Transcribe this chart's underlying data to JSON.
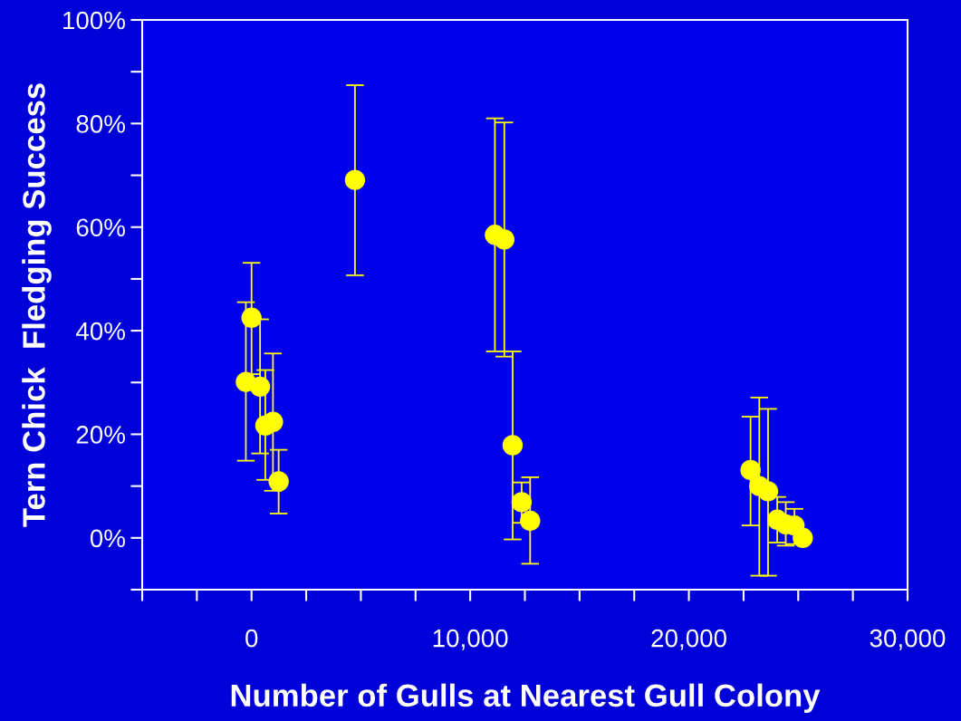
{
  "chart_data": {
    "type": "scatter",
    "xlabel": "Number of Gulls at Nearest Gull Colony",
    "ylabel": "Tern Chick  Fledging Success",
    "x": [
      -260,
      0,
      390,
      630,
      980,
      1240,
      4730,
      11130,
      11560,
      11940,
      12350,
      12740,
      22820,
      23220,
      23620,
      24040,
      24430,
      24830,
      25210
    ],
    "series": [
      {
        "color": "#ffff00",
        "values": [
          30.1,
          42.5,
          29.2,
          21.7,
          22.4,
          10.9,
          69.1,
          58.5,
          57.6,
          17.9,
          6.9,
          3.3,
          13.1,
          10.0,
          9.0,
          3.5,
          2.6,
          2.4,
          0
        ],
        "errors": [
          [
            14.9,
            45.5
          ],
          [
            31.6,
            53.1
          ],
          [
            16.3,
            42.2
          ],
          [
            11.2,
            32.4
          ],
          [
            9.1,
            35.6
          ],
          [
            4.7,
            17.0
          ],
          [
            50.7,
            87.4
          ],
          [
            36.0,
            81.0
          ],
          [
            35.0,
            80.2
          ],
          [
            -0.3,
            36.0
          ],
          [
            2.9,
            10.7
          ],
          [
            -5.0,
            11.7
          ],
          [
            2.4,
            23.4
          ],
          [
            -7.3,
            27.1
          ],
          [
            -7.3,
            24.9
          ],
          [
            -0.9,
            7.9
          ],
          [
            -1.5,
            6.9
          ],
          [
            -1.2,
            5.6
          ],
          null
        ]
      }
    ],
    "marker": "circle",
    "xlim": [
      -5000,
      30000
    ],
    "xticks": [
      {
        "value": -5000,
        "label": null
      },
      {
        "value": -2500,
        "label": null
      },
      {
        "value": 0,
        "label": "0"
      },
      {
        "value": 2500,
        "label": null
      },
      {
        "value": 5000,
        "label": null
      },
      {
        "value": 7500,
        "label": null
      },
      {
        "value": 10000,
        "label": "10,000"
      },
      {
        "value": 12500,
        "label": null
      },
      {
        "value": 15000,
        "label": null
      },
      {
        "value": 17500,
        "label": null
      },
      {
        "value": 20000,
        "label": "20,000"
      },
      {
        "value": 22500,
        "label": null
      },
      {
        "value": 25000,
        "label": null
      },
      {
        "value": 27500,
        "label": null
      },
      {
        "value": 30000,
        "label": "30,000"
      }
    ],
    "ylim": [
      -10,
      100
    ],
    "yticks": [
      {
        "value": -10,
        "label": null
      },
      {
        "value": 0,
        "label": "0%"
      },
      {
        "value": 10,
        "label": null
      },
      {
        "value": 20,
        "label": "20%"
      },
      {
        "value": 30,
        "label": null
      },
      {
        "value": 40,
        "label": "40%"
      },
      {
        "value": 50,
        "label": null
      },
      {
        "value": 60,
        "label": "60%"
      },
      {
        "value": 70,
        "label": null
      },
      {
        "value": 80,
        "label": "80%"
      },
      {
        "value": 90,
        "label": null
      },
      {
        "value": 100,
        "label": "100%"
      }
    ],
    "grid": false,
    "legend": false
  }
}
